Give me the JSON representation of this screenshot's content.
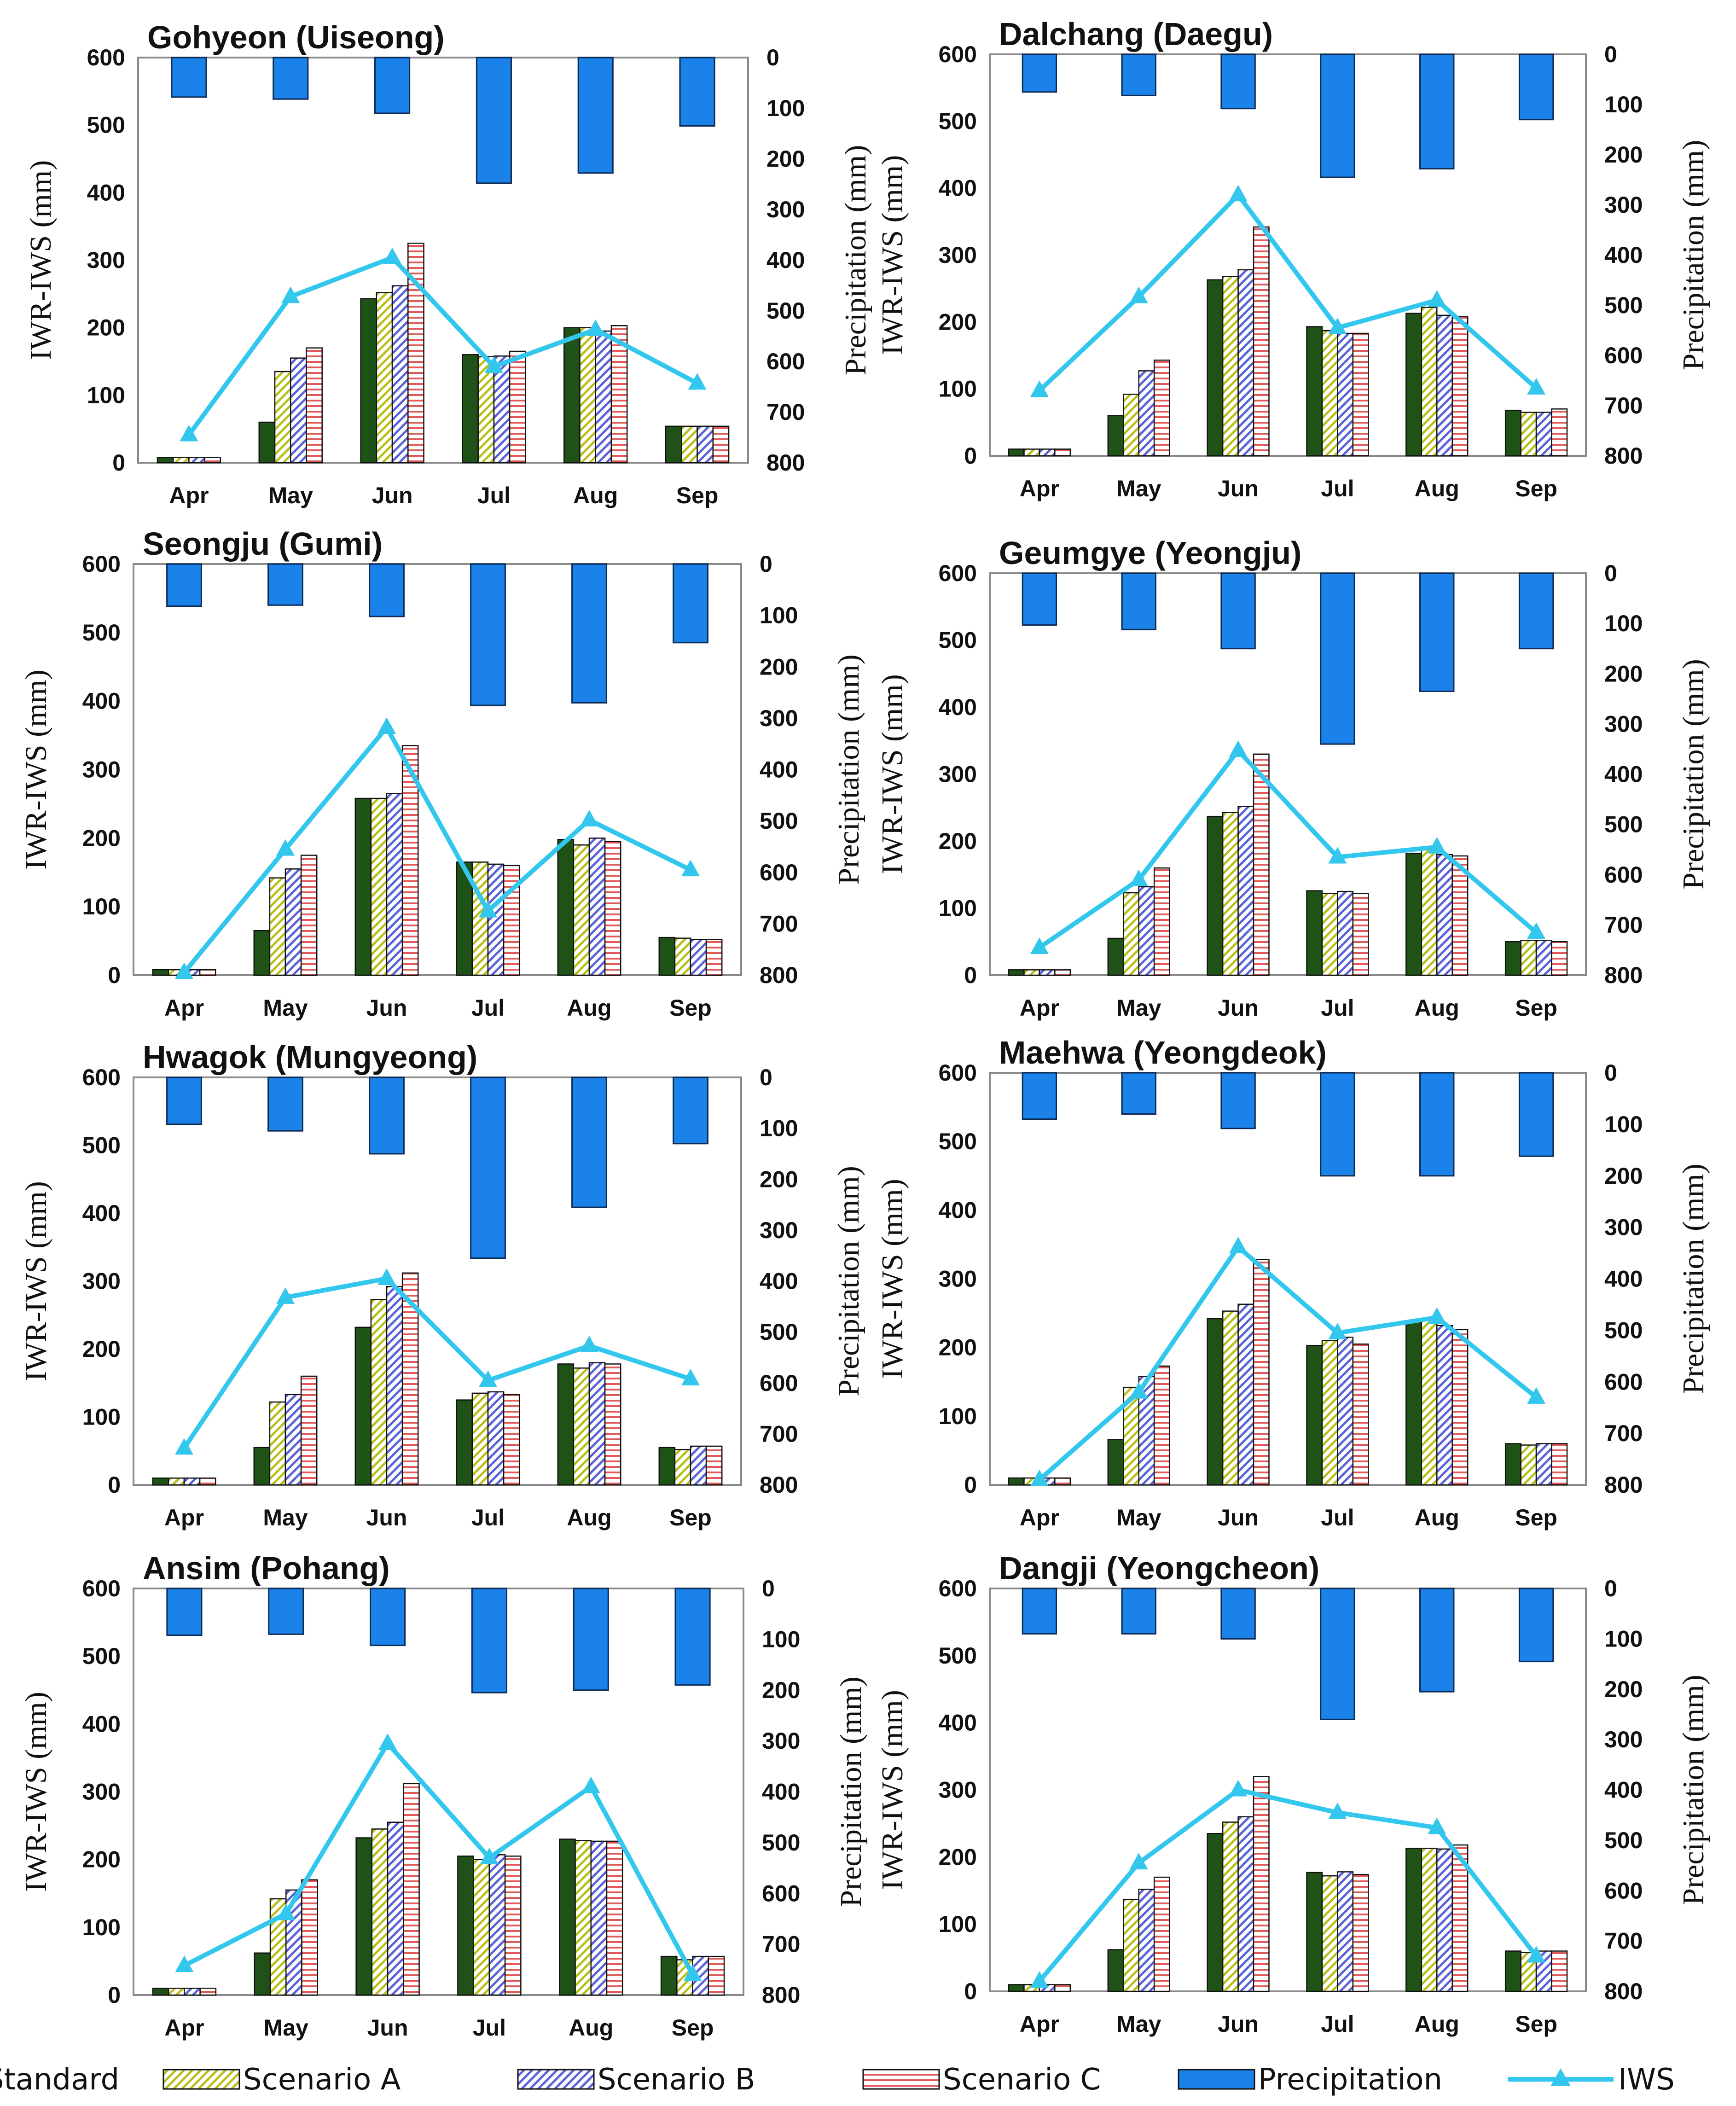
{
  "colors": {
    "standard": "#1e5216",
    "scenario_a": "#b9bf1a",
    "scenario_b": "#5b63d6",
    "scenario_c": "#e05a5a",
    "precipitation": "#1a82e8",
    "iws": "#33c7ee"
  },
  "legend": [
    {
      "key": "standard",
      "label": "Standard",
      "icon": "solid-swatch-icon"
    },
    {
      "key": "scenario_a",
      "label": "Scenario A",
      "icon": "diagonal-hatch-swatch-icon"
    },
    {
      "key": "scenario_b",
      "label": "Scenario B",
      "icon": "diagonal-hatch-swatch-icon"
    },
    {
      "key": "scenario_c",
      "label": "Scenario C",
      "icon": "horizontal-hatch-swatch-icon"
    },
    {
      "key": "precipitation",
      "label": "Precipitation",
      "icon": "solid-swatch-icon"
    },
    {
      "key": "iws",
      "label": "IWS",
      "icon": "triangle-line-icon"
    }
  ],
  "chart_data": [
    {
      "type": "bar",
      "title": "Gohyeon (Uiseong)",
      "categories": [
        "Apr",
        "May",
        "Jun",
        "Jul",
        "Aug",
        "Sep"
      ],
      "ylabel": "IWR-IWS (mm)",
      "ylim": [
        0,
        600
      ],
      "yticks": [
        "0",
        "100",
        "200",
        "300",
        "400",
        "500",
        "600"
      ],
      "y2label": "Precipitation (mm)",
      "y2lim": [
        0,
        800
      ],
      "y2ticks": [
        "0",
        "100",
        "200",
        "300",
        "400",
        "500",
        "600",
        "700",
        "800"
      ],
      "series": [
        {
          "name": "Standard",
          "values": [
            8,
            60,
            243,
            160,
            200,
            54
          ]
        },
        {
          "name": "Scenario A",
          "values": [
            8,
            135,
            252,
            157,
            200,
            54
          ]
        },
        {
          "name": "Scenario B",
          "values": [
            8,
            155,
            262,
            158,
            195,
            54
          ]
        },
        {
          "name": "Scenario C",
          "values": [
            8,
            170,
            325,
            165,
            203,
            54
          ]
        },
        {
          "name": "Precipitation",
          "values": [
            78,
            82,
            110,
            248,
            228,
            135
          ]
        },
        {
          "name": "IWS",
          "values": [
            745,
            472,
            395,
            610,
            537,
            643
          ]
        }
      ]
    },
    {
      "type": "bar",
      "title": "Dalchang (Daegu)",
      "categories": [
        "Apr",
        "May",
        "Jun",
        "Jul",
        "Aug",
        "Sep"
      ],
      "ylabel": "IWR-IWS (mm)",
      "ylim": [
        0,
        600
      ],
      "yticks": [
        "0",
        "100",
        "200",
        "300",
        "400",
        "500",
        "600"
      ],
      "y2label": "Precipitation (mm)",
      "y2lim": [
        0,
        800
      ],
      "y2ticks": [
        "0",
        "100",
        "200",
        "300",
        "400",
        "500",
        "600",
        "700",
        "800"
      ],
      "series": [
        {
          "name": "Standard",
          "values": [
            10,
            60,
            263,
            193,
            213,
            68
          ]
        },
        {
          "name": "Scenario A",
          "values": [
            10,
            92,
            268,
            187,
            222,
            65
          ]
        },
        {
          "name": "Scenario B",
          "values": [
            10,
            127,
            278,
            183,
            210,
            65
          ]
        },
        {
          "name": "Scenario C",
          "values": [
            10,
            143,
            342,
            183,
            208,
            70
          ]
        },
        {
          "name": "Precipitation",
          "values": [
            75,
            82,
            108,
            245,
            228,
            130
          ]
        },
        {
          "name": "IWS",
          "values": [
            670,
            483,
            280,
            545,
            490,
            665
          ]
        }
      ]
    },
    {
      "type": "bar",
      "title": "Seongju (Gumi)",
      "categories": [
        "Apr",
        "May",
        "Jun",
        "Jul",
        "Aug",
        "Sep"
      ],
      "ylabel": "IWR-IWS (mm)",
      "ylim": [
        0,
        600
      ],
      "yticks": [
        "0",
        "100",
        "200",
        "300",
        "400",
        "500",
        "600"
      ],
      "y2label": "Precipitation (mm)",
      "y2lim": [
        0,
        800
      ],
      "y2ticks": [
        "0",
        "100",
        "200",
        "300",
        "400",
        "500",
        "600",
        "700",
        "800"
      ],
      "series": [
        {
          "name": "Standard",
          "values": [
            8,
            65,
            258,
            165,
            198,
            55
          ]
        },
        {
          "name": "Scenario A",
          "values": [
            8,
            142,
            258,
            165,
            190,
            54
          ]
        },
        {
          "name": "Scenario B",
          "values": [
            8,
            155,
            265,
            162,
            200,
            52
          ]
        },
        {
          "name": "Scenario C",
          "values": [
            8,
            175,
            335,
            160,
            195,
            52
          ]
        },
        {
          "name": "Precipitation",
          "values": [
            82,
            80,
            102,
            275,
            270,
            153
          ]
        },
        {
          "name": "IWS",
          "values": [
            795,
            555,
            318,
            675,
            498,
            595
          ]
        }
      ]
    },
    {
      "type": "bar",
      "title": "Geumgye (Yeongju)",
      "categories": [
        "Apr",
        "May",
        "Jun",
        "Jul",
        "Aug",
        "Sep"
      ],
      "ylabel": "IWR-IWS (mm)",
      "ylim": [
        0,
        600
      ],
      "yticks": [
        "0",
        "100",
        "200",
        "300",
        "400",
        "500",
        "600"
      ],
      "y2label": "Precipitation (mm)",
      "y2lim": [
        0,
        800
      ],
      "y2ticks": [
        "0",
        "100",
        "200",
        "300",
        "400",
        "500",
        "600",
        "700",
        "800"
      ],
      "series": [
        {
          "name": "Standard",
          "values": [
            8,
            55,
            237,
            126,
            182,
            50
          ]
        },
        {
          "name": "Scenario A",
          "values": [
            8,
            123,
            243,
            122,
            190,
            52
          ]
        },
        {
          "name": "Scenario B",
          "values": [
            8,
            132,
            252,
            125,
            180,
            52
          ]
        },
        {
          "name": "Scenario C",
          "values": [
            8,
            160,
            330,
            122,
            178,
            50
          ]
        },
        {
          "name": "Precipitation",
          "values": [
            103,
            112,
            150,
            340,
            235,
            150
          ]
        },
        {
          "name": "IWS",
          "values": [
            745,
            610,
            353,
            565,
            545,
            715
          ]
        }
      ]
    },
    {
      "type": "bar",
      "title": "Hwagok (Mungyeong)",
      "categories": [
        "Apr",
        "May",
        "Jun",
        "Jul",
        "Aug",
        "Sep"
      ],
      "ylabel": "IWR-IWS (mm)",
      "ylim": [
        0,
        600
      ],
      "yticks": [
        "0",
        "100",
        "200",
        "300",
        "400",
        "500",
        "600"
      ],
      "y2label": "Precipitation (mm)",
      "y2lim": [
        0,
        800
      ],
      "y2ticks": [
        "0",
        "100",
        "200",
        "300",
        "400",
        "500",
        "600",
        "700",
        "800"
      ],
      "series": [
        {
          "name": "Standard",
          "values": [
            10,
            55,
            232,
            125,
            178,
            55
          ]
        },
        {
          "name": "Scenario A",
          "values": [
            10,
            122,
            273,
            135,
            172,
            52
          ]
        },
        {
          "name": "Scenario B",
          "values": [
            10,
            133,
            292,
            137,
            180,
            57
          ]
        },
        {
          "name": "Scenario C",
          "values": [
            10,
            160,
            312,
            133,
            178,
            57
          ]
        },
        {
          "name": "Precipitation",
          "values": [
            92,
            105,
            150,
            355,
            255,
            130
          ]
        },
        {
          "name": "IWS",
          "values": [
            728,
            432,
            395,
            595,
            527,
            592
          ]
        }
      ]
    },
    {
      "type": "bar",
      "title": "Maehwa (Yeongdeok)",
      "categories": [
        "Apr",
        "May",
        "Jun",
        "Jul",
        "Aug",
        "Sep"
      ],
      "ylabel": "IWR-IWS (mm)",
      "ylim": [
        0,
        600
      ],
      "yticks": [
        "0",
        "100",
        "200",
        "300",
        "400",
        "500",
        "600"
      ],
      "y2label": "Precipitation (mm)",
      "y2lim": [
        0,
        800
      ],
      "y2ticks": [
        "0",
        "100",
        "200",
        "300",
        "400",
        "500",
        "600",
        "700",
        "800"
      ],
      "series": [
        {
          "name": "Standard",
          "values": [
            10,
            66,
            242,
            203,
            237,
            60
          ]
        },
        {
          "name": "Scenario A",
          "values": [
            10,
            142,
            253,
            210,
            240,
            58
          ]
        },
        {
          "name": "Scenario B",
          "values": [
            10,
            158,
            263,
            215,
            232,
            60
          ]
        },
        {
          "name": "Scenario C",
          "values": [
            10,
            173,
            328,
            205,
            226,
            60
          ]
        },
        {
          "name": "Precipitation",
          "values": [
            90,
            80,
            108,
            200,
            200,
            162
          ]
        },
        {
          "name": "IWS",
          "values": [
            790,
            620,
            338,
            505,
            475,
            630
          ]
        }
      ]
    },
    {
      "type": "bar",
      "title": "Ansim (Pohang)",
      "categories": [
        "Apr",
        "May",
        "Jun",
        "Jul",
        "Aug",
        "Sep"
      ],
      "ylabel": "IWR-IWS (mm)",
      "ylim": [
        0,
        600
      ],
      "yticks": [
        "0",
        "100",
        "200",
        "300",
        "400",
        "500",
        "600"
      ],
      "y2label": "Precipitation (mm)",
      "y2lim": [
        0,
        800
      ],
      "y2ticks": [
        "0",
        "100",
        "200",
        "300",
        "400",
        "500",
        "600",
        "700",
        "800"
      ],
      "series": [
        {
          "name": "Standard",
          "values": [
            10,
            62,
            232,
            205,
            230,
            57
          ]
        },
        {
          "name": "Scenario A",
          "values": [
            10,
            142,
            245,
            200,
            228,
            52
          ]
        },
        {
          "name": "Scenario B",
          "values": [
            10,
            155,
            255,
            207,
            227,
            57
          ]
        },
        {
          "name": "Scenario C",
          "values": [
            10,
            170,
            312,
            205,
            227,
            57
          ]
        },
        {
          "name": "Precipitation",
          "values": [
            92,
            90,
            112,
            205,
            200,
            190
          ]
        },
        {
          "name": "IWS",
          "values": [
            742,
            640,
            305,
            530,
            390,
            760
          ]
        }
      ]
    },
    {
      "type": "bar",
      "title": "Dangji (Yeongcheon)",
      "categories": [
        "Apr",
        "May",
        "Jun",
        "Jul",
        "Aug",
        "Sep"
      ],
      "ylabel": "IWR-IWS (mm)",
      "ylim": [
        0,
        600
      ],
      "yticks": [
        "0",
        "100",
        "200",
        "300",
        "400",
        "500",
        "600"
      ],
      "y2label": "Precipitation (mm)",
      "y2lim": [
        0,
        800
      ],
      "y2ticks": [
        "0",
        "100",
        "200",
        "300",
        "400",
        "500",
        "600",
        "700",
        "800"
      ],
      "series": [
        {
          "name": "Standard",
          "values": [
            10,
            62,
            235,
            177,
            213,
            60
          ]
        },
        {
          "name": "Scenario A",
          "values": [
            10,
            137,
            252,
            172,
            213,
            58
          ]
        },
        {
          "name": "Scenario B",
          "values": [
            10,
            152,
            260,
            178,
            212,
            60
          ]
        },
        {
          "name": "Scenario C",
          "values": [
            10,
            170,
            320,
            174,
            218,
            60
          ]
        },
        {
          "name": "Precipitation",
          "values": [
            90,
            90,
            100,
            260,
            205,
            145
          ]
        },
        {
          "name": "IWS",
          "values": [
            780,
            545,
            400,
            445,
            475,
            730
          ]
        }
      ]
    }
  ]
}
